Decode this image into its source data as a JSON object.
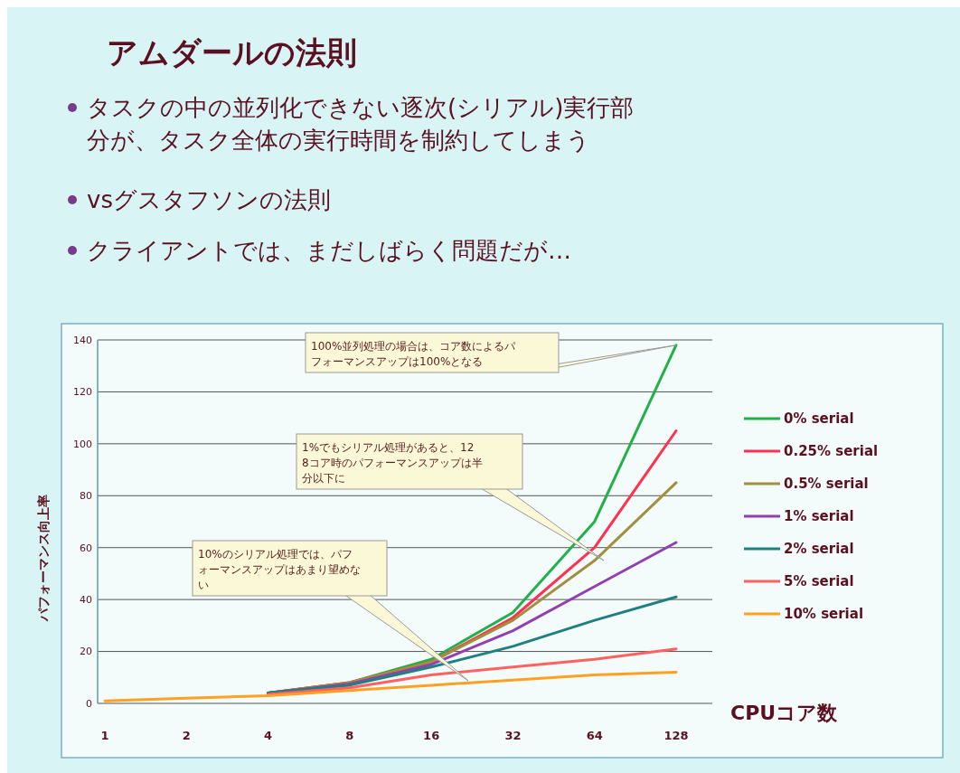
{
  "chart_data": {
    "type": "line",
    "title": "アムダールの法則",
    "annotations": [
      "タスクの中の並列化できない逐次(シリアル)実行部分が、タスク全体の実行時間を制約してしまう",
      "vsグスタフソンの法則",
      "クライアントでは、まだしばらく問題だが…",
      {
        "text": "100%並列処理の場合は、コア数によるパフォーマンスアップは100%となる",
        "x": "128",
        "y": 138
      },
      "1%でもシリアル処理があると、128コア時のパフォーマンスアップは半分以下に",
      "10%のシリアル処理では、パフォーマンスアップはあまり望めない"
    ],
    "xlabel": "CPUコア数",
    "ylabel": "パフォーマンス向上率",
    "categories": [
      "1",
      "2",
      "4",
      "8",
      "16",
      "32",
      "64",
      "128"
    ],
    "series": [
      {
        "name": "0% serial",
        "color": "#22b04a",
        "values": [
          null,
          null,
          4,
          8,
          17,
          35,
          70,
          138
        ]
      },
      {
        "name": "0.25% serial",
        "color": "#ff3050",
        "values": [
          null,
          null,
          4,
          8,
          16,
          33,
          60,
          105
        ]
      },
      {
        "name": "0.5% serial",
        "color": "#a09040",
        "values": [
          null,
          null,
          4,
          8,
          16,
          32,
          55,
          85
        ]
      },
      {
        "name": "1% serial",
        "color": "#9040b0",
        "values": [
          null,
          null,
          4,
          7.5,
          15,
          28,
          45,
          62
        ]
      },
      {
        "name": "2% serial",
        "color": "#208080",
        "values": [
          null,
          null,
          4,
          7,
          14,
          22,
          32,
          41
        ]
      },
      {
        "name": "5% serial",
        "color": "#ff6060",
        "values": [
          null,
          null,
          3.5,
          6,
          11,
          14,
          17,
          21
        ]
      },
      {
        "name": "10% serial",
        "color": "#ffa020",
        "values": [
          1,
          2,
          3,
          5,
          7,
          9,
          11,
          12
        ]
      }
    ],
    "ylim": [
      0,
      140
    ],
    "yticks": [
      0,
      20,
      40,
      60,
      80,
      100,
      120,
      140
    ],
    "grid": "y",
    "legend": "right",
    "marker": "none",
    "line_style": "solid"
  }
}
